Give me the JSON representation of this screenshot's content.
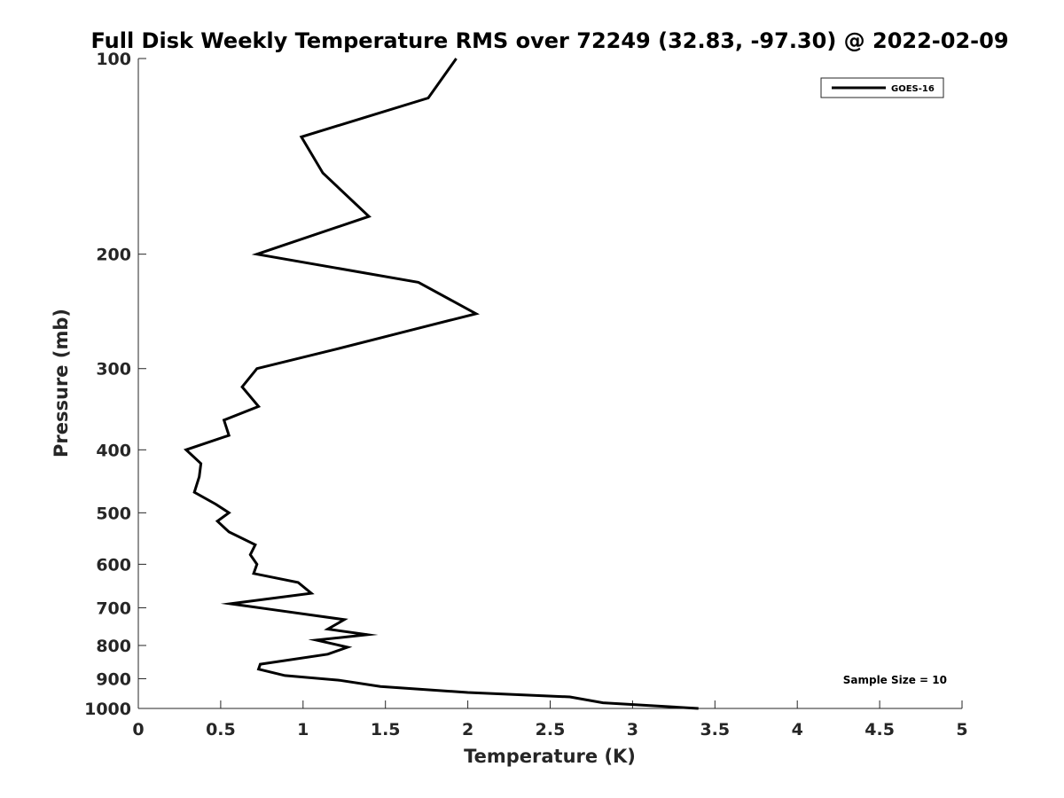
{
  "chart_data": {
    "type": "line",
    "title": "Full Disk Weekly Temperature RMS over 72249 (32.83, -97.30) @ 2022-02-09",
    "xlabel": "Temperature (K)",
    "ylabel": "Pressure (mb)",
    "xlim": [
      0,
      5
    ],
    "ylim": [
      1000,
      100
    ],
    "yscale": "log",
    "x_ticks": [
      "0",
      "0.5",
      "1",
      "1.5",
      "2",
      "2.5",
      "3",
      "3.5",
      "4",
      "4.5",
      "5"
    ],
    "y_ticks": [
      "100",
      "200",
      "300",
      "400",
      "500",
      "600",
      "700",
      "800",
      "900",
      "1000"
    ],
    "grid": false,
    "legend": {
      "position": "top-right",
      "entries": [
        "GOES-16"
      ]
    },
    "annotation": "Sample Size = 10",
    "series": [
      {
        "name": "GOES-16",
        "color": "#000000",
        "points": [
          [
            1.93,
            100
          ],
          [
            1.76,
            115
          ],
          [
            0.99,
            132
          ],
          [
            1.12,
            150
          ],
          [
            1.4,
            175
          ],
          [
            0.72,
            200
          ],
          [
            1.7,
            221
          ],
          [
            2.05,
            247
          ],
          [
            1.65,
            262
          ],
          [
            1.2,
            280
          ],
          [
            0.72,
            300
          ],
          [
            0.63,
            320
          ],
          [
            0.73,
            343
          ],
          [
            0.52,
            360
          ],
          [
            0.55,
            380
          ],
          [
            0.29,
            400
          ],
          [
            0.38,
            420
          ],
          [
            0.37,
            440
          ],
          [
            0.34,
            465
          ],
          [
            0.47,
            485
          ],
          [
            0.55,
            500
          ],
          [
            0.48,
            515
          ],
          [
            0.55,
            535
          ],
          [
            0.71,
            560
          ],
          [
            0.68,
            580
          ],
          [
            0.72,
            600
          ],
          [
            0.7,
            620
          ],
          [
            0.97,
            640
          ],
          [
            1.05,
            665
          ],
          [
            0.56,
            690
          ],
          [
            0.82,
            705
          ],
          [
            1.25,
            730
          ],
          [
            1.15,
            755
          ],
          [
            1.39,
            770
          ],
          [
            1.08,
            785
          ],
          [
            1.27,
            805
          ],
          [
            1.15,
            825
          ],
          [
            0.74,
            855
          ],
          [
            0.73,
            870
          ],
          [
            0.89,
            890
          ],
          [
            1.22,
            905
          ],
          [
            1.47,
            925
          ],
          [
            2.0,
            945
          ],
          [
            2.62,
            960
          ],
          [
            2.82,
            980
          ],
          [
            3.4,
            1000
          ]
        ]
      }
    ]
  }
}
